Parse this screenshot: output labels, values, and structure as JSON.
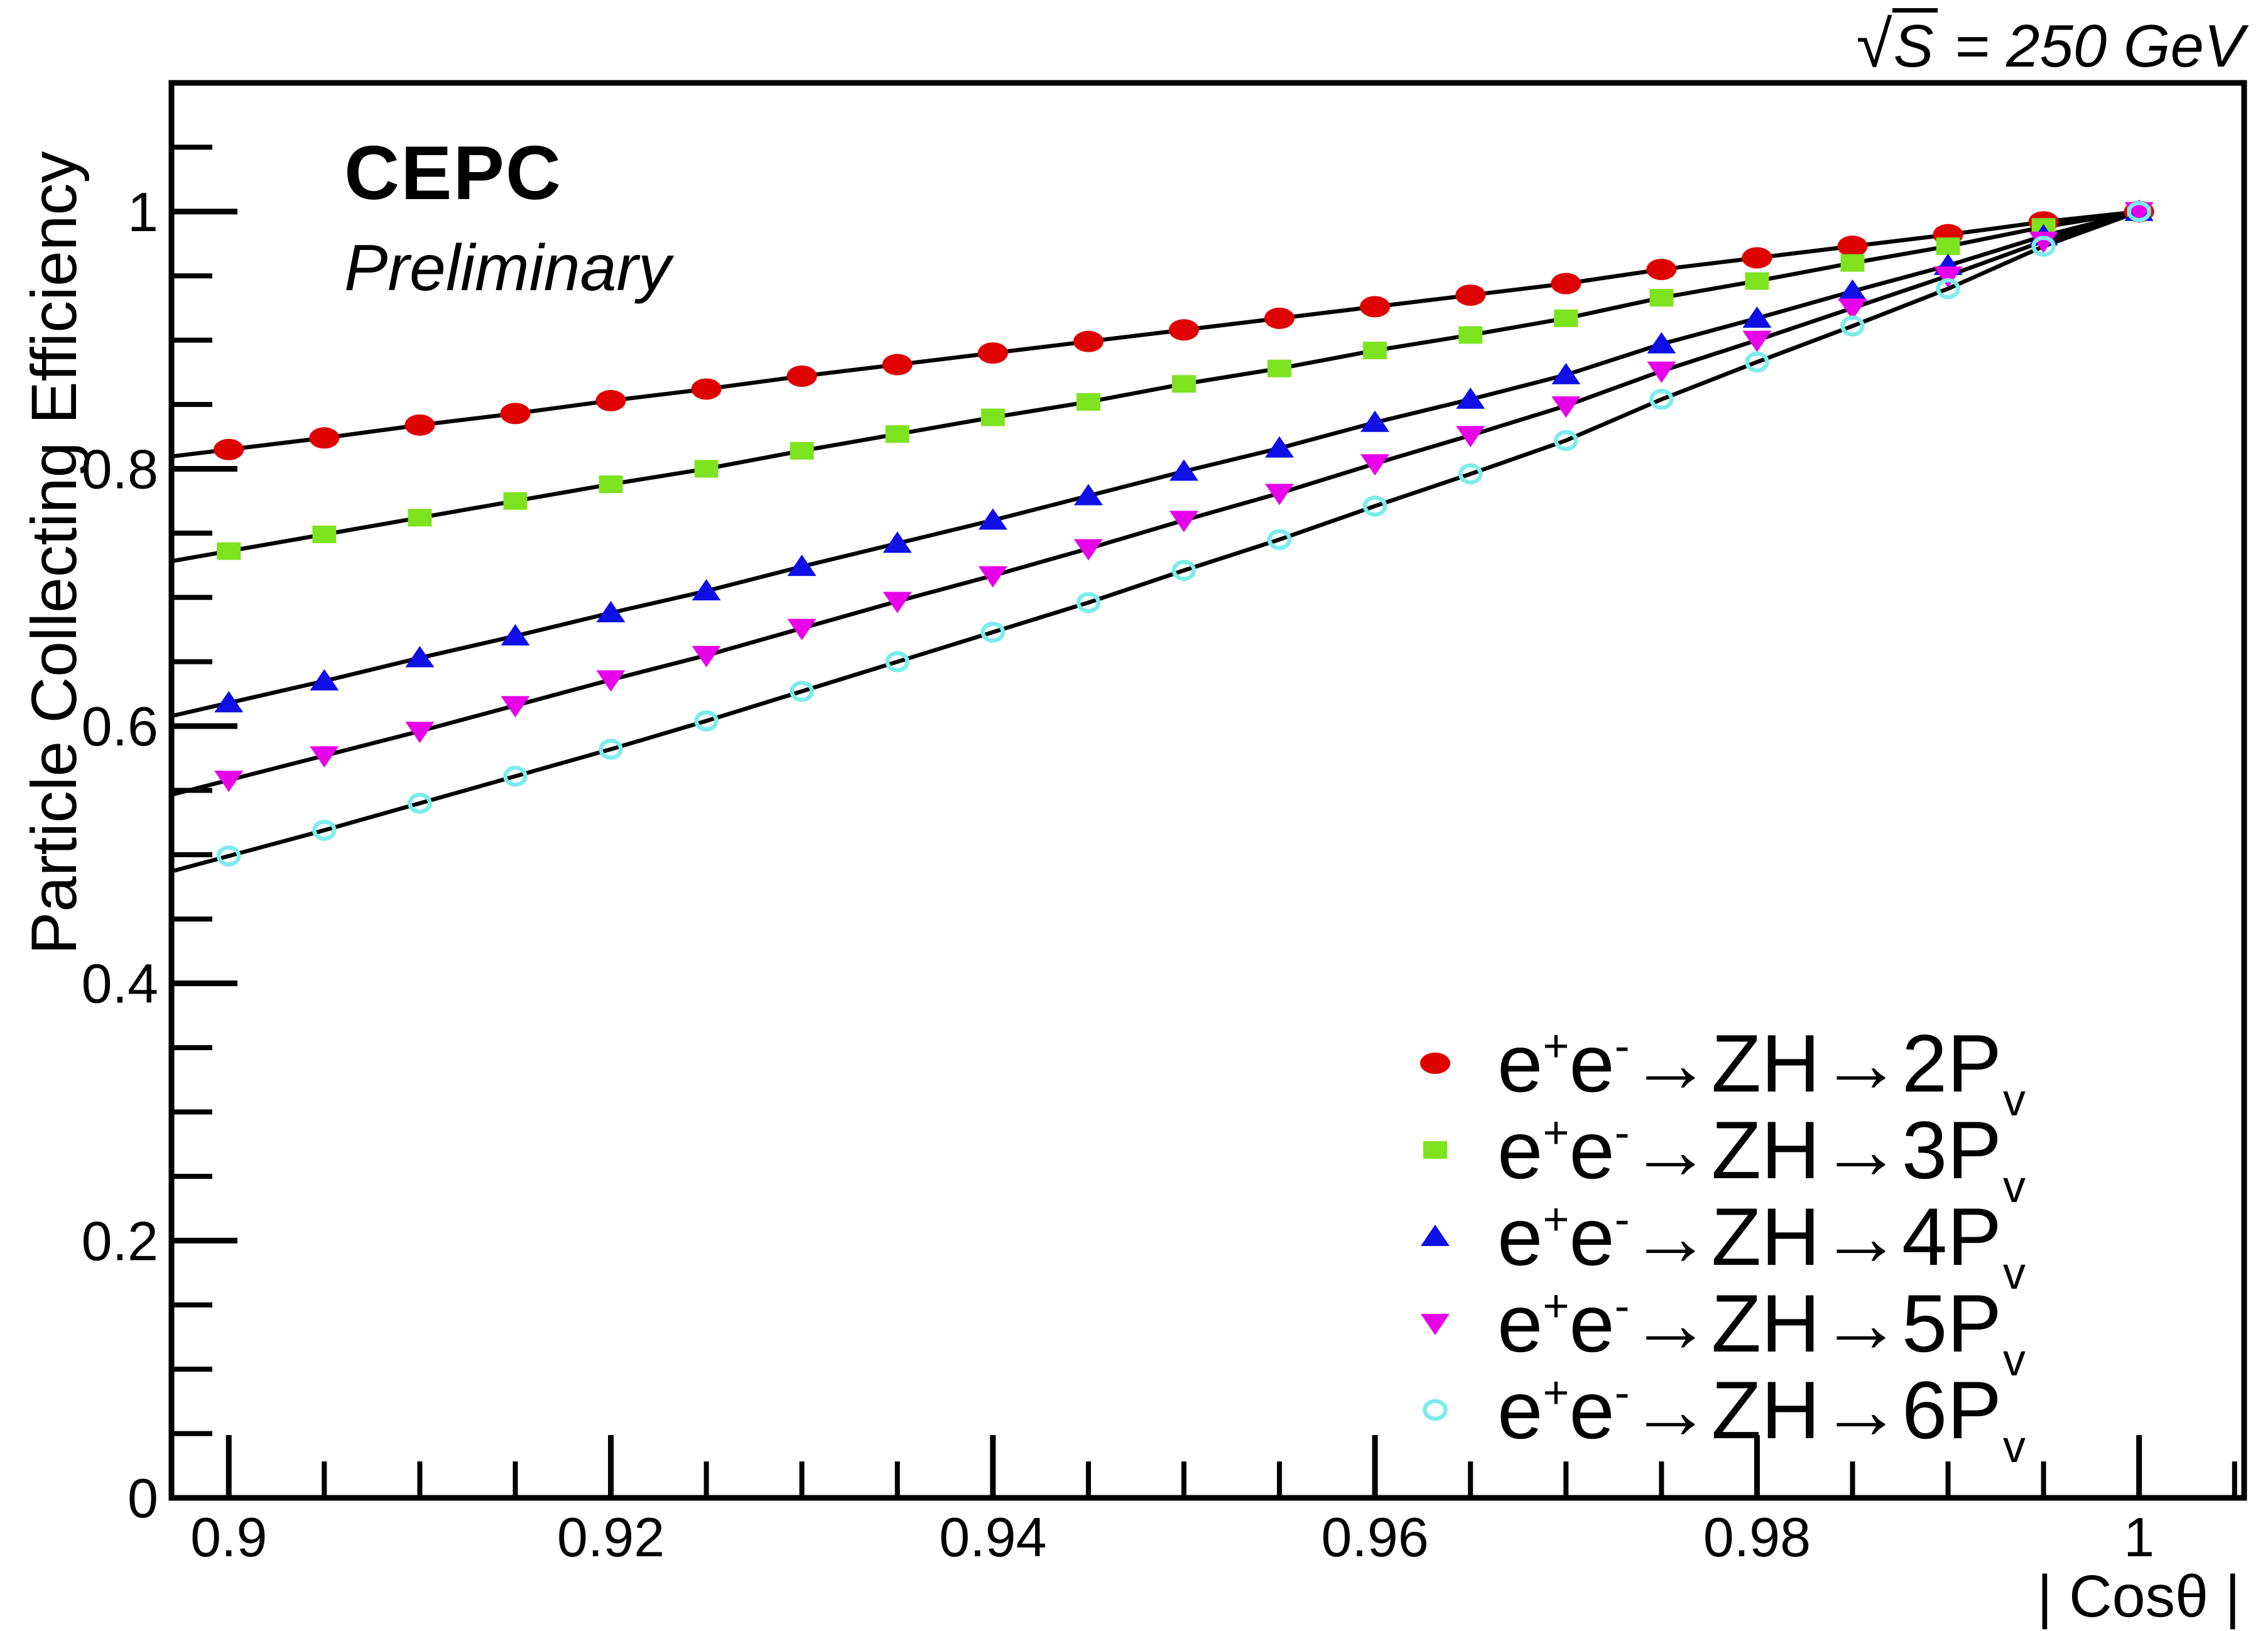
{
  "page": {
    "background": "#ffffff",
    "frame_color": "#000000"
  },
  "annotations": {
    "experiment": "CEPC",
    "status": "Preliminary",
    "energy": {
      "sqrt": "√",
      "radicand": "S",
      "suffix": " = 250 GeV"
    }
  },
  "legend": {
    "tokens": {
      "e": "e",
      "plus": "+",
      "minus": "-",
      "arrow_zh": "→ZH→",
      "p": "P",
      "sub": "v"
    }
  },
  "chart_data": {
    "type": "line",
    "title": "",
    "xlabel": "| Cosθ |",
    "ylabel": "Particle Collecting Efficiency",
    "xlim": [
      0.897,
      1.0055
    ],
    "ylim": [
      0,
      1.1
    ],
    "grid": false,
    "legend_position": "bottom-right",
    "line_color": "#000000",
    "x_major_ticks": [
      0.9,
      0.92,
      0.94,
      0.96,
      0.98,
      1.0
    ],
    "x_tick_labels": [
      "0.9",
      "0.92",
      "0.94",
      "0.96",
      "0.98",
      "1"
    ],
    "x_minor_step": 0.005,
    "y_major_ticks": [
      0,
      0.2,
      0.4,
      0.6,
      0.8,
      1.0
    ],
    "y_tick_labels": [
      "0",
      "0.2",
      "0.4",
      "0.6",
      "0.8",
      "1"
    ],
    "y_minor_step": 0.05,
    "x": [
      0.9,
      0.905,
      0.91,
      0.915,
      0.92,
      0.925,
      0.93,
      0.935,
      0.94,
      0.945,
      0.95,
      0.955,
      0.96,
      0.965,
      0.97,
      0.975,
      0.98,
      0.985,
      0.99,
      0.995,
      1.0
    ],
    "series": [
      {
        "name": "e+e- → ZH → 2Pv",
        "n": "2",
        "marker": "filled-circle",
        "color": "#df0000",
        "values": [
          0.815,
          0.824,
          0.834,
          0.843,
          0.853,
          0.862,
          0.872,
          0.881,
          0.89,
          0.899,
          0.908,
          0.917,
          0.926,
          0.935,
          0.944,
          0.955,
          0.964,
          0.973,
          0.982,
          0.992,
          1.0
        ]
      },
      {
        "name": "e+e- → ZH → 3Pv",
        "n": "3",
        "marker": "filled-square",
        "color": "#7de31f",
        "values": [
          0.736,
          0.749,
          0.762,
          0.775,
          0.788,
          0.8,
          0.814,
          0.827,
          0.84,
          0.852,
          0.866,
          0.878,
          0.892,
          0.904,
          0.917,
          0.933,
          0.946,
          0.96,
          0.973,
          0.988,
          1.0
        ]
      },
      {
        "name": "e+e- → ZH → 4Pv",
        "n": "4",
        "marker": "triangle-up",
        "color": "#0f0fe6",
        "values": [
          0.618,
          0.635,
          0.653,
          0.67,
          0.688,
          0.705,
          0.724,
          0.742,
          0.76,
          0.779,
          0.798,
          0.816,
          0.836,
          0.854,
          0.873,
          0.897,
          0.917,
          0.938,
          0.958,
          0.981,
          1.0
        ]
      },
      {
        "name": "e+e- → ZH → 5Pv",
        "n": "5",
        "marker": "triangle-down",
        "color": "#e800e8",
        "values": [
          0.558,
          0.577,
          0.596,
          0.616,
          0.636,
          0.655,
          0.676,
          0.697,
          0.717,
          0.738,
          0.76,
          0.781,
          0.804,
          0.826,
          0.849,
          0.876,
          0.9,
          0.925,
          0.95,
          0.977,
          1.0
        ]
      },
      {
        "name": "e+e- → ZH → 6Pv",
        "n": "6",
        "marker": "open-circle",
        "color": "#7cecec",
        "values": [
          0.499,
          0.519,
          0.54,
          0.561,
          0.582,
          0.604,
          0.627,
          0.65,
          0.673,
          0.696,
          0.721,
          0.745,
          0.771,
          0.796,
          0.822,
          0.854,
          0.883,
          0.911,
          0.94,
          0.973,
          1.0
        ]
      }
    ]
  }
}
